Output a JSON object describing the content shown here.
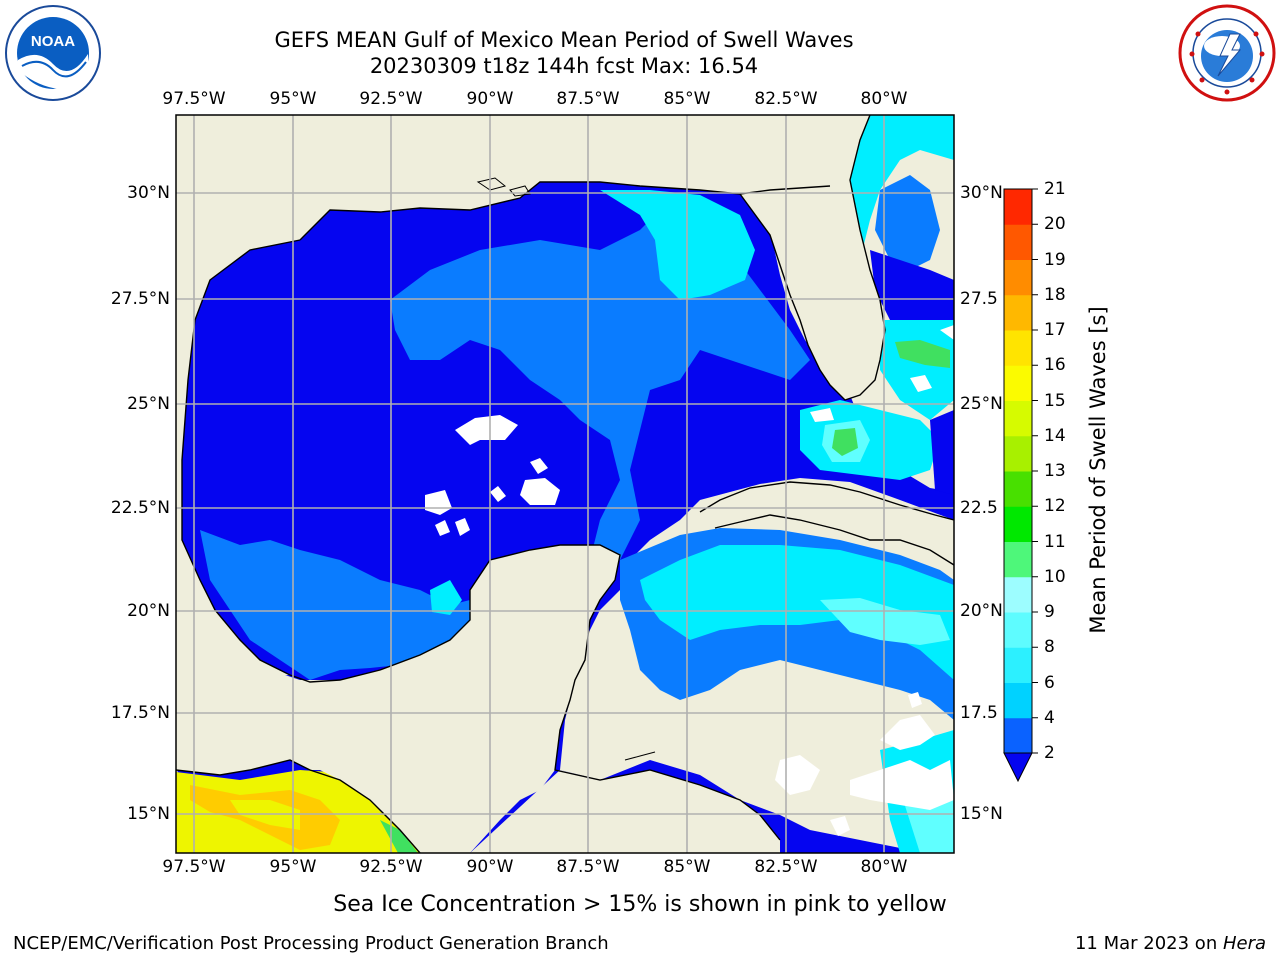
{
  "title_line1": "GEFS MEAN Gulf of Mexico Mean Period of Swell Waves",
  "title_line2": "20230309 t18z 144h fcst   Max: 16.54",
  "lon_labels": [
    "97.5°W",
    "95°W",
    "92.5°W",
    "90°W",
    "87.5°W",
    "85°W",
    "82.5°W",
    "80°W"
  ],
  "lat_labels_left": [
    "30°N",
    "27.5°N",
    "25°N",
    "22.5°N",
    "20°N",
    "17.5°N",
    "15°N"
  ],
  "lat_labels_right": [
    "30°N",
    "27.5",
    "25°N",
    "22.5",
    "20°N",
    "17.5",
    "15°N"
  ],
  "colorbar": {
    "title": "Mean Period of Swell Waves [s]",
    "ticks": [
      "2",
      "4",
      "6",
      "8",
      "9",
      "10",
      "11",
      "12",
      "13",
      "14",
      "15",
      "16",
      "17",
      "18",
      "19",
      "20",
      "21"
    ],
    "colors": [
      "#0a62ff",
      "#00d2ff",
      "#2cf0ff",
      "#5efcff",
      "#9dfdff",
      "#4ef77a",
      "#00e800",
      "#48e000",
      "#a8f000",
      "#d6fb00",
      "#fbfb00",
      "#ffe400",
      "#ffb800",
      "#ff8c00",
      "#ff5800",
      "#ff2800"
    ],
    "under_color": "#0505f0"
  },
  "footnote": "Sea Ice Concentration > 15% is shown in pink to yellow",
  "credit_left": "NCEP/EMC/Verification Post Processing Product Generation Branch",
  "credit_right_date": "11 Mar 2023 on ",
  "credit_right_host": "Hera",
  "logos": {
    "left": {
      "icon": "noaa-logo",
      "text": "NOAA",
      "color": "#0a5ec2"
    },
    "right": {
      "icon": "nws-logo",
      "color": "#d01010"
    }
  },
  "map_colors": {
    "land": "#efeedc",
    "deep_blue": "#0505f0",
    "mid_blue": "#0a7cff",
    "cyan": "#00eeff",
    "light_cyan": "#60ffff",
    "green": "#40e060",
    "yellow": "#eef500",
    "orange": "#ffcc00"
  }
}
